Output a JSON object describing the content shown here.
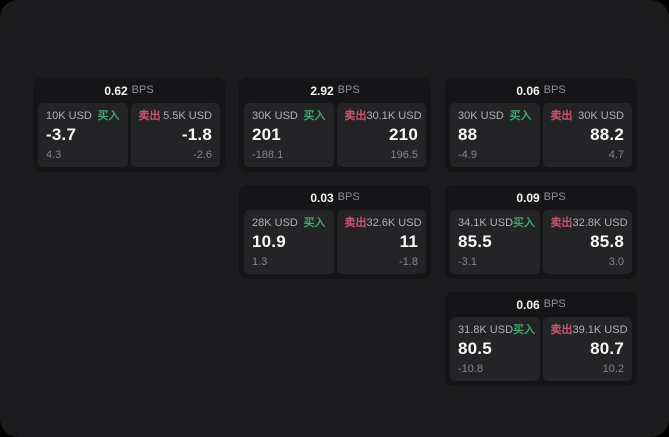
{
  "labels": {
    "bps_unit": "BPS",
    "buy": "买入",
    "sell": "卖出"
  },
  "colors": {
    "background": "#000000",
    "panel": "#1c1c1e",
    "card": "#151517",
    "subpanel": "#242427",
    "buy_green": "#3fa56a",
    "sell_red": "#c85570"
  },
  "cards": [
    {
      "bps": "0.62",
      "buy": {
        "amount": "10K USD",
        "price": "-3.7",
        "sub": "4.3"
      },
      "sell": {
        "amount": "5.5K USD",
        "price": "-1.8",
        "sub": "-2.6"
      }
    },
    {
      "bps": "2.92",
      "buy": {
        "amount": "30K USD",
        "price": "201",
        "sub": "-188.1"
      },
      "sell": {
        "amount": "30.1K USD",
        "price": "210",
        "sub": "196.5"
      }
    },
    {
      "bps": "0.06",
      "buy": {
        "amount": "30K USD",
        "price": "88",
        "sub": "-4.9"
      },
      "sell": {
        "amount": "30K USD",
        "price": "88.2",
        "sub": "4.7"
      }
    },
    {
      "bps": "0.03",
      "buy": {
        "amount": "28K USD",
        "price": "10.9",
        "sub": "1.3"
      },
      "sell": {
        "amount": "32.6K USD",
        "price": "11",
        "sub": "-1.8"
      }
    },
    {
      "bps": "0.09",
      "buy": {
        "amount": "34.1K USD",
        "price": "85.5",
        "sub": "-3.1"
      },
      "sell": {
        "amount": "32.8K USD",
        "price": "85.8",
        "sub": "3.0"
      }
    },
    {
      "bps": "0.06",
      "buy": {
        "amount": "31.8K USD",
        "price": "80.5",
        "sub": "-10.8"
      },
      "sell": {
        "amount": "39.1K USD",
        "price": "80.7",
        "sub": "10.2"
      }
    }
  ]
}
